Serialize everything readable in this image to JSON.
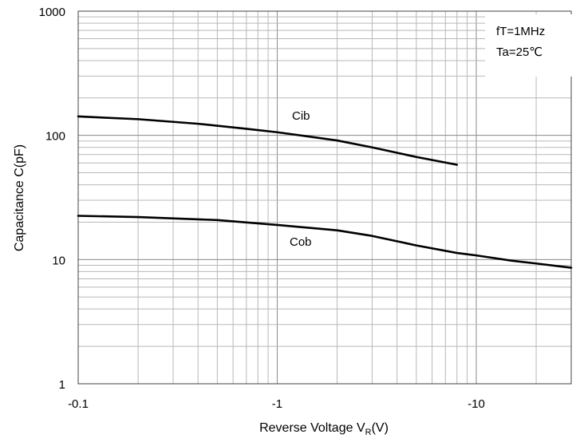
{
  "chart_data": {
    "type": "line",
    "xlabel_main": "Reverse Voltage  V",
    "xlabel_sub": "R",
    "xlabel_unit": "(V)",
    "ylabel": "Capacitance  C(pF)",
    "x_scale": "log",
    "y_scale": "log",
    "x_ticks": [
      "-0.1",
      "-1",
      "-10"
    ],
    "y_ticks": [
      "1000",
      "100",
      "10",
      "1"
    ],
    "xlim": [
      0.1,
      30
    ],
    "ylim": [
      1,
      1000
    ],
    "grid": true,
    "annotations": [
      "fT=1MHz",
      "Ta=25℃"
    ],
    "series": [
      {
        "name": "Cib",
        "x": [
          0.1,
          0.2,
          0.4,
          0.7,
          1.0,
          2.0,
          3.0,
          5.0,
          8.0
        ],
        "y": [
          142,
          135,
          124,
          113,
          106,
          91,
          80,
          67,
          58
        ]
      },
      {
        "name": "Cob",
        "x": [
          0.1,
          0.2,
          0.5,
          1.0,
          2.0,
          3.0,
          5.0,
          8.0,
          10.0,
          15.0,
          20.0,
          30.0
        ],
        "y": [
          22.5,
          22.0,
          20.8,
          19.0,
          17.2,
          15.5,
          13.0,
          11.3,
          10.8,
          9.8,
          9.3,
          8.6
        ]
      }
    ],
    "colors": {
      "line": "#000000",
      "grid": "#b8b8b8",
      "axis": "#404040"
    }
  }
}
